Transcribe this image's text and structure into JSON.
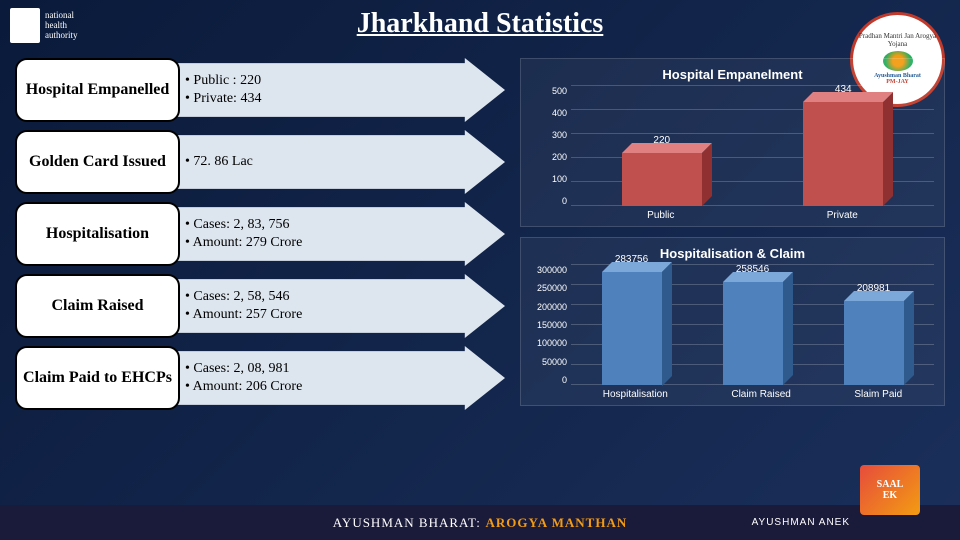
{
  "title": "Jharkhand Statistics",
  "logo_left": {
    "text1": "national",
    "text2": "health",
    "text3": "authority"
  },
  "logo_right": {
    "top": "Pradhan Mantri Jan Arogya Yojana",
    "mid": "Ayushman Bharat",
    "bottom": "PM-JAY"
  },
  "stats": [
    {
      "label": "Hospital Empanelled",
      "lines": [
        "• Public  : 220",
        "• Private: 434"
      ]
    },
    {
      "label": "Golden Card Issued",
      "lines": [
        "• 72. 86 Lac"
      ]
    },
    {
      "label": "Hospitalisation",
      "lines": [
        "• Cases: 2, 83, 756",
        "• Amount: 279 Crore"
      ]
    },
    {
      "label": "Claim Raised",
      "lines": [
        "• Cases: 2, 58, 546",
        "• Amount: 257 Crore"
      ]
    },
    {
      "label": "Claim Paid to EHCPs",
      "lines": [
        "• Cases: 2, 08, 981",
        "• Amount: 206 Crore"
      ]
    }
  ],
  "chart1": {
    "type": "bar3d",
    "title": "Hospital Empanelment",
    "categories": [
      "Public",
      "Private"
    ],
    "values": [
      220,
      434
    ],
    "value_labels": [
      "220",
      "434"
    ],
    "bar_colors": [
      "#c0504d",
      "#c0504d"
    ],
    "bar_top_colors": [
      "#e08080",
      "#e08080"
    ],
    "bar_side_colors": [
      "#903030",
      "#903030"
    ],
    "ylim": [
      0,
      500
    ],
    "ytick_step": 100,
    "yticks": [
      "0",
      "100",
      "200",
      "300",
      "400",
      "500"
    ],
    "grid_color": "rgba(255,255,255,0.2)",
    "title_fontsize": 13,
    "label_fontsize": 10
  },
  "chart2": {
    "type": "bar3d",
    "title": "Hospitalisation & Claim",
    "categories": [
      "Hospitalisation",
      "Claim Raised",
      "Slaim Paid"
    ],
    "values": [
      283756,
      258546,
      208981
    ],
    "value_labels": [
      "283756",
      "258546",
      "208981"
    ],
    "bar_colors": [
      "#4f81bd",
      "#4f81bd",
      "#4f81bd"
    ],
    "bar_top_colors": [
      "#7ba7d9",
      "#7ba7d9",
      "#7ba7d9"
    ],
    "bar_side_colors": [
      "#2e5a8e",
      "#2e5a8e",
      "#2e5a8e"
    ],
    "ylim": [
      0,
      300000
    ],
    "ytick_step": 50000,
    "yticks": [
      "0",
      "50000",
      "100000",
      "150000",
      "200000",
      "250000",
      "300000"
    ],
    "grid_color": "rgba(255,255,255,0.2)",
    "title_fontsize": 13,
    "label_fontsize": 10
  },
  "footer": {
    "brand": "AYUSHMAN BHARAT:",
    "accent": "AROGYA MANTHAN",
    "right": "AYUSHMAN ANEK",
    "badge1": "SAAL",
    "badge2": "EK"
  }
}
